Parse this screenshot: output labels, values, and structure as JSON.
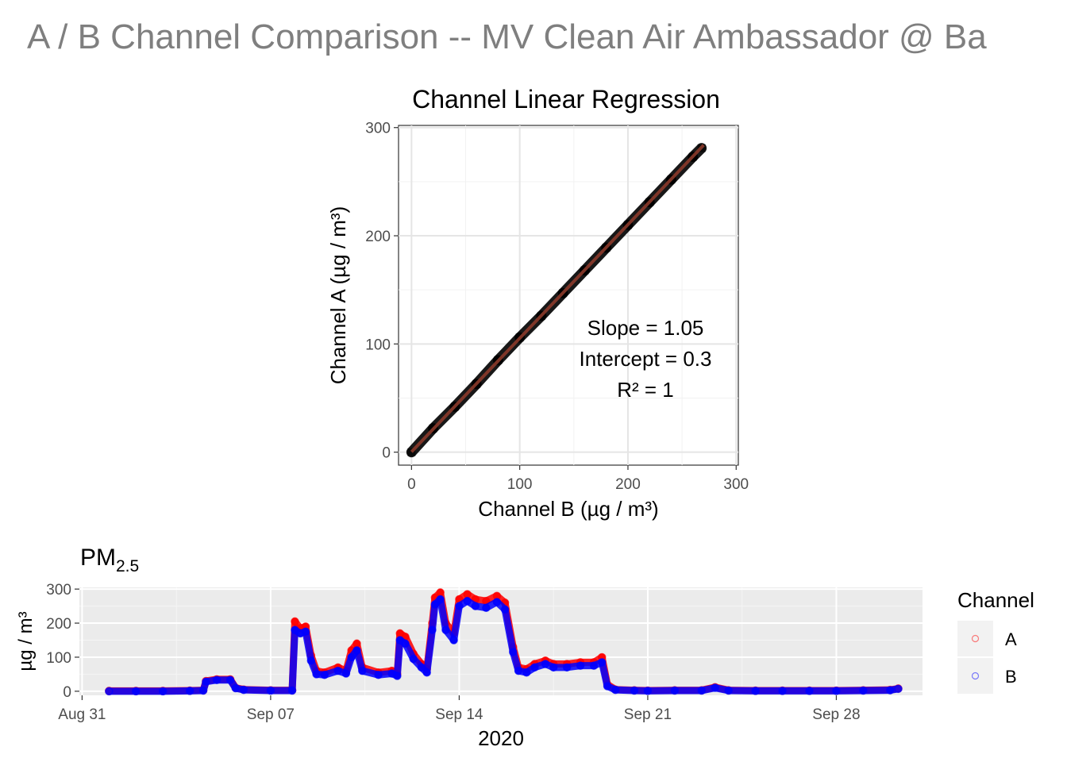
{
  "page": {
    "title": "A / B Channel Comparison -- MV Clean Air Ambassador @ Ba"
  },
  "chart_data": [
    {
      "type": "scatter",
      "title": "Channel Linear Regression",
      "xlabel": "Channel B (µg / m³)",
      "ylabel": "Channel A (µg / m³)",
      "xlim": [
        -12,
        302
      ],
      "ylim": [
        -12,
        302
      ],
      "xticks": [
        0,
        100,
        200,
        300
      ],
      "yticks": [
        0,
        100,
        200,
        300
      ],
      "grid": true,
      "points_color": "#000000",
      "fit_line": {
        "slope": 1.05,
        "intercept": 0.3,
        "color": "#8b3a2b",
        "x_range": [
          0,
          270
        ]
      },
      "annotation": [
        "Slope = 1.05",
        "Intercept = 0.3",
        "R² = 1"
      ],
      "points": [
        [
          0,
          0
        ],
        [
          20,
          22
        ],
        [
          40,
          42
        ],
        [
          60,
          63
        ],
        [
          80,
          85
        ],
        [
          100,
          106
        ],
        [
          120,
          126
        ],
        [
          140,
          147
        ],
        [
          160,
          168
        ],
        [
          180,
          189
        ],
        [
          200,
          210
        ],
        [
          220,
          231
        ],
        [
          240,
          252
        ],
        [
          260,
          273
        ],
        [
          268,
          281
        ]
      ]
    },
    {
      "type": "scatter",
      "title": "PM",
      "title_subscript": "2.5",
      "xlabel": "2020",
      "ylabel": "µg / m³",
      "ylim": [
        -12,
        305
      ],
      "xlim_days": [
        -0.1,
        31.2
      ],
      "yticks": [
        0,
        100,
        200,
        300
      ],
      "xticks": [
        {
          "day": 0,
          "label": "Aug 31"
        },
        {
          "day": 7,
          "label": "Sep 07"
        },
        {
          "day": 14,
          "label": "Sep 14"
        },
        {
          "day": 21,
          "label": "Sep 21"
        },
        {
          "day": 28,
          "label": "Sep 28"
        }
      ],
      "legend": {
        "title": "Channel",
        "placement": "right",
        "entries": [
          {
            "label": "A",
            "color": "#ff0000"
          },
          {
            "label": "B",
            "color": "#0000ff"
          }
        ]
      },
      "series": [
        {
          "name": "A",
          "color": "#ff0000",
          "points": [
            [
              1,
              1
            ],
            [
              2,
              1
            ],
            [
              3,
              1
            ],
            [
              4,
              2
            ],
            [
              4.5,
              3
            ],
            [
              4.6,
              30
            ],
            [
              5,
              35
            ],
            [
              5.5,
              35
            ],
            [
              5.7,
              10
            ],
            [
              6,
              5
            ],
            [
              7,
              3
            ],
            [
              7.8,
              3
            ],
            [
              7.9,
              205
            ],
            [
              8.1,
              185
            ],
            [
              8.3,
              190
            ],
            [
              8.5,
              105
            ],
            [
              8.7,
              60
            ],
            [
              9,
              55
            ],
            [
              9.5,
              70
            ],
            [
              9.8,
              60
            ],
            [
              10,
              120
            ],
            [
              10.2,
              140
            ],
            [
              10.4,
              70
            ],
            [
              11,
              55
            ],
            [
              11.5,
              60
            ],
            [
              11.7,
              50
            ],
            [
              11.8,
              170
            ],
            [
              12,
              160
            ],
            [
              12.3,
              110
            ],
            [
              12.6,
              80
            ],
            [
              12.8,
              65
            ],
            [
              13,
              200
            ],
            [
              13.1,
              275
            ],
            [
              13.3,
              290
            ],
            [
              13.5,
              200
            ],
            [
              13.8,
              170
            ],
            [
              14,
              270
            ],
            [
              14.3,
              285
            ],
            [
              14.6,
              270
            ],
            [
              15,
              265
            ],
            [
              15.4,
              280
            ],
            [
              15.7,
              260
            ],
            [
              16,
              130
            ],
            [
              16.2,
              70
            ],
            [
              16.5,
              65
            ],
            [
              16.8,
              80
            ],
            [
              17.2,
              90
            ],
            [
              17.5,
              80
            ],
            [
              18,
              80
            ],
            [
              18.5,
              85
            ],
            [
              19,
              85
            ],
            [
              19.3,
              100
            ],
            [
              19.5,
              20
            ],
            [
              19.8,
              5
            ],
            [
              20.5,
              3
            ],
            [
              21,
              2
            ],
            [
              22,
              3
            ],
            [
              23,
              3
            ],
            [
              23.5,
              12
            ],
            [
              24,
              3
            ],
            [
              25,
              2
            ],
            [
              26,
              2
            ],
            [
              27,
              2
            ],
            [
              28,
              2
            ],
            [
              29,
              3
            ],
            [
              30,
              4
            ],
            [
              30.3,
              8
            ]
          ]
        },
        {
          "name": "B",
          "color": "#0000ff",
          "points": [
            [
              1,
              0
            ],
            [
              2,
              0
            ],
            [
              3,
              0
            ],
            [
              4,
              1
            ],
            [
              4.5,
              2
            ],
            [
              4.6,
              28
            ],
            [
              5,
              33
            ],
            [
              5.5,
              33
            ],
            [
              5.7,
              9
            ],
            [
              6,
              4
            ],
            [
              7,
              2
            ],
            [
              7.8,
              2
            ],
            [
              7.9,
              180
            ],
            [
              8.1,
              170
            ],
            [
              8.3,
              175
            ],
            [
              8.5,
              90
            ],
            [
              8.7,
              50
            ],
            [
              9,
              48
            ],
            [
              9.5,
              60
            ],
            [
              9.8,
              52
            ],
            [
              10,
              100
            ],
            [
              10.2,
              120
            ],
            [
              10.4,
              60
            ],
            [
              11,
              48
            ],
            [
              11.5,
              52
            ],
            [
              11.7,
              45
            ],
            [
              11.8,
              150
            ],
            [
              12,
              140
            ],
            [
              12.3,
              95
            ],
            [
              12.6,
              70
            ],
            [
              12.8,
              55
            ],
            [
              13,
              180
            ],
            [
              13.1,
              255
            ],
            [
              13.3,
              270
            ],
            [
              13.5,
              180
            ],
            [
              13.8,
              150
            ],
            [
              14,
              250
            ],
            [
              14.3,
              265
            ],
            [
              14.6,
              250
            ],
            [
              15,
              245
            ],
            [
              15.4,
              262
            ],
            [
              15.7,
              240
            ],
            [
              16,
              115
            ],
            [
              16.2,
              60
            ],
            [
              16.5,
              55
            ],
            [
              16.8,
              70
            ],
            [
              17.2,
              80
            ],
            [
              17.5,
              70
            ],
            [
              18,
              70
            ],
            [
              18.5,
              75
            ],
            [
              19,
              75
            ],
            [
              19.3,
              85
            ],
            [
              19.5,
              15
            ],
            [
              19.8,
              4
            ],
            [
              20.5,
              2
            ],
            [
              21,
              1
            ],
            [
              22,
              2
            ],
            [
              23,
              2
            ],
            [
              23.5,
              10
            ],
            [
              24,
              2
            ],
            [
              25,
              1
            ],
            [
              26,
              1
            ],
            [
              27,
              1
            ],
            [
              28,
              1
            ],
            [
              29,
              2
            ],
            [
              30,
              3
            ],
            [
              30.3,
              7
            ]
          ]
        }
      ]
    }
  ]
}
